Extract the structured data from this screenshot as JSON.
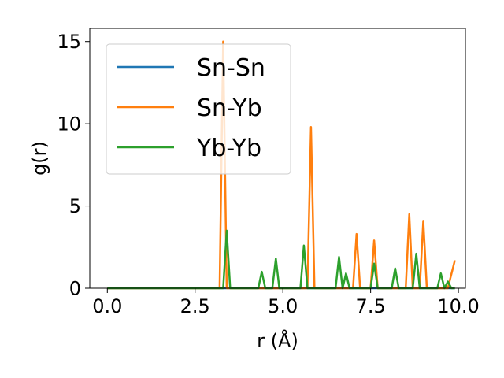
{
  "chart_data": {
    "type": "line",
    "title": "",
    "xlabel": "r (Å)",
    "ylabel": "g(r)",
    "xlim": [
      -0.5,
      10.2
    ],
    "ylim": [
      0,
      15.8
    ],
    "xticks": [
      0.0,
      2.5,
      5.0,
      7.5,
      10.0
    ],
    "xtick_labels": [
      "0.0",
      "2.5",
      "5.0",
      "7.5",
      "10.0"
    ],
    "yticks": [
      0,
      5,
      10,
      15
    ],
    "ytick_labels": [
      "0",
      "5",
      "10",
      "15"
    ],
    "grid": false,
    "legend_position": "top-left",
    "series": [
      {
        "name": "Sn-Sn",
        "color": "#1f77b4",
        "x": [
          0.0,
          9.9
        ],
        "y": [
          0.0,
          0.0
        ]
      },
      {
        "name": "Sn-Yb",
        "color": "#ff7f0e",
        "x": [
          0.0,
          3.2,
          3.3,
          3.4,
          5.7,
          5.8,
          5.9,
          7.0,
          7.1,
          7.2,
          7.5,
          7.6,
          7.7,
          8.5,
          8.6,
          8.7,
          8.9,
          9.0,
          9.1,
          9.7,
          9.9
        ],
        "y": [
          0.0,
          0.0,
          15.0,
          0.0,
          0.0,
          9.8,
          0.0,
          0.0,
          3.3,
          0.0,
          0.0,
          2.9,
          0.0,
          0.0,
          4.5,
          0.0,
          0.0,
          4.1,
          0.0,
          0.0,
          1.7
        ]
      },
      {
        "name": "Yb-Yb",
        "color": "#2ca02c",
        "x": [
          0.0,
          3.3,
          3.4,
          3.5,
          4.3,
          4.4,
          4.5,
          4.7,
          4.8,
          4.9,
          5.5,
          5.6,
          5.7,
          6.5,
          6.6,
          6.7,
          6.8,
          6.9,
          7.5,
          7.6,
          7.7,
          8.1,
          8.2,
          8.3,
          8.7,
          8.8,
          8.9,
          9.4,
          9.5,
          9.6,
          9.7,
          9.8,
          9.9
        ],
        "y": [
          0.0,
          0.0,
          3.5,
          0.0,
          0.0,
          1.0,
          0.0,
          0.0,
          1.8,
          0.0,
          0.0,
          2.6,
          0.0,
          0.0,
          1.9,
          0.0,
          0.9,
          0.0,
          0.0,
          1.5,
          0.0,
          0.0,
          1.2,
          0.0,
          0.0,
          2.1,
          0.0,
          0.0,
          0.9,
          0.0,
          0.4,
          0.0,
          0.0
        ]
      }
    ]
  }
}
